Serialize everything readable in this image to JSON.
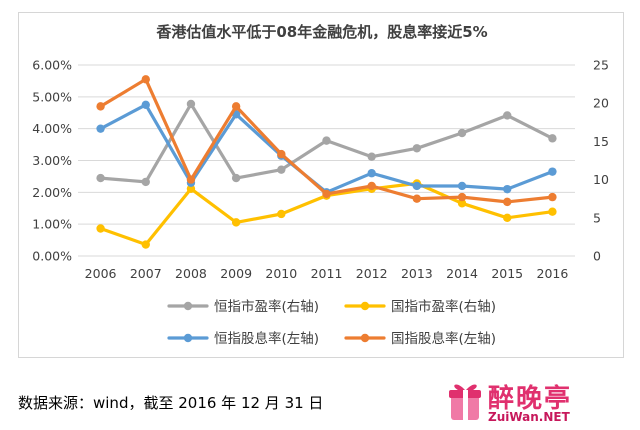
{
  "chart_data": {
    "type": "line",
    "title": "香港估值水平低于08年金融危机，股息率接近5%",
    "categories": [
      "2006",
      "2007",
      "2008",
      "2009",
      "2010",
      "2011",
      "2012",
      "2013",
      "2014",
      "2015",
      "2016"
    ],
    "left_axis": {
      "ticks": [
        "0.00%",
        "1.00%",
        "2.00%",
        "3.00%",
        "4.00%",
        "5.00%",
        "6.00%"
      ],
      "ylim": [
        0,
        6
      ]
    },
    "right_axis": {
      "ticks": [
        "0",
        "5",
        "10",
        "15",
        "20",
        "25"
      ],
      "ylim": [
        0,
        25
      ]
    },
    "series": [
      {
        "name": "恒指市盈率(右轴)",
        "axis": "right",
        "color": "#a5a5a5",
        "values": [
          10.2,
          9.7,
          19.9,
          10.2,
          11.3,
          15.1,
          13.0,
          14.1,
          16.1,
          18.4,
          15.4
        ]
      },
      {
        "name": "国指市盈率(右轴)",
        "axis": "right",
        "color": "#ffc000",
        "values": [
          3.6,
          1.5,
          8.8,
          4.4,
          5.5,
          7.9,
          8.8,
          9.5,
          6.9,
          5.0,
          5.8
        ]
      },
      {
        "name": "恒指股息率(左轴)",
        "axis": "left",
        "color": "#5b9bd5",
        "values": [
          4.0,
          4.75,
          2.3,
          4.45,
          3.15,
          2.0,
          2.6,
          2.2,
          2.2,
          2.1,
          2.65
        ]
      },
      {
        "name": "国指股息率(左轴)",
        "axis": "left",
        "color": "#ed7d31",
        "values": [
          4.7,
          5.55,
          2.4,
          4.7,
          3.2,
          1.95,
          2.2,
          1.8,
          1.85,
          1.7,
          1.85
        ]
      }
    ],
    "grid": true,
    "legend_position": "bottom"
  },
  "source_note": "数据来源：wind，截至 2016 年 12 月 31 日",
  "watermark": {
    "cn": "醉晚亭",
    "en": "ZuiWan.NET"
  }
}
